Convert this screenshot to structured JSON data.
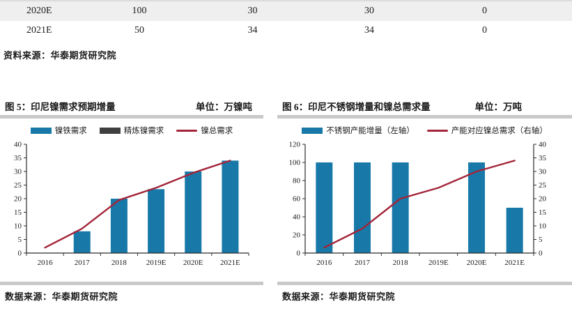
{
  "table": {
    "rows": [
      {
        "year": "2020E",
        "values": [
          "100",
          "30",
          "30",
          "0"
        ]
      },
      {
        "year": "2021E",
        "values": [
          "50",
          "34",
          "34",
          "0"
        ]
      }
    ],
    "source": "资料来源：华泰期货研究院"
  },
  "figures": [
    {
      "title": "图 5：印尼镍需求预期增量",
      "unit": "单位：万镍吨",
      "source": "数据来源：华泰期货研究院",
      "legend": [
        {
          "label": "镍铁需求",
          "marker": "bar",
          "color": "#1879A9"
        },
        {
          "label": "精炼镍需求",
          "marker": "bar",
          "color": "#3F3F3F"
        },
        {
          "label": "镍总需求",
          "marker": "line",
          "color": "#A32438"
        }
      ]
    },
    {
      "title": "图 6：印尼不锈钢增量和镍总需求量",
      "unit": "单位：万吨",
      "source": "数据来源：华泰期货研究院",
      "legend": [
        {
          "label": "不锈钢产能增量（左轴）",
          "marker": "bar",
          "color": "#1879A9"
        },
        {
          "label": "产能对应镍总需求（右轴）",
          "marker": "line",
          "color": "#A32438"
        }
      ]
    }
  ],
  "chart_data": [
    {
      "type": "bar",
      "title": "图 5：印尼镍需求预期增量",
      "unit_label": "万镍吨",
      "categories": [
        "2016",
        "2017",
        "2018",
        "2019E",
        "2020E",
        "2021E"
      ],
      "series": [
        {
          "name": "镍铁需求",
          "kind": "bar",
          "axis": "left",
          "color": "#1879A9",
          "values": [
            0,
            8,
            20,
            23.5,
            30,
            34
          ]
        },
        {
          "name": "精炼镍需求",
          "kind": "bar",
          "axis": "left",
          "color": "#3F3F3F",
          "values": [
            0,
            0,
            0,
            0,
            0,
            0
          ]
        },
        {
          "name": "镍总需求",
          "kind": "line",
          "axis": "left",
          "color": "#A32438",
          "values": [
            2,
            9,
            19.5,
            24,
            29.5,
            34
          ]
        }
      ],
      "left_axis": {
        "min": 0,
        "max": 40,
        "step": 5
      },
      "right_axis": null,
      "grid": false,
      "legend_position": "top"
    },
    {
      "type": "bar",
      "title": "图 6：印尼不锈钢增量和镍总需求量",
      "unit_label": "万吨",
      "categories": [
        "2016",
        "2017",
        "2018",
        "2019E",
        "2020E",
        "2021E"
      ],
      "series": [
        {
          "name": "不锈钢产能增量（左轴）",
          "kind": "bar",
          "axis": "left",
          "color": "#1879A9",
          "values": [
            100,
            100,
            100,
            0,
            100,
            50
          ]
        },
        {
          "name": "产能对应镍总需求（右轴）",
          "kind": "line",
          "axis": "right",
          "color": "#A32438",
          "values": [
            2,
            9,
            20,
            24,
            30,
            34
          ]
        }
      ],
      "left_axis": {
        "min": 0,
        "max": 120,
        "step": 20
      },
      "right_axis": {
        "min": 0,
        "max": 40,
        "step": 5
      },
      "grid": false,
      "legend_position": "top"
    }
  ]
}
